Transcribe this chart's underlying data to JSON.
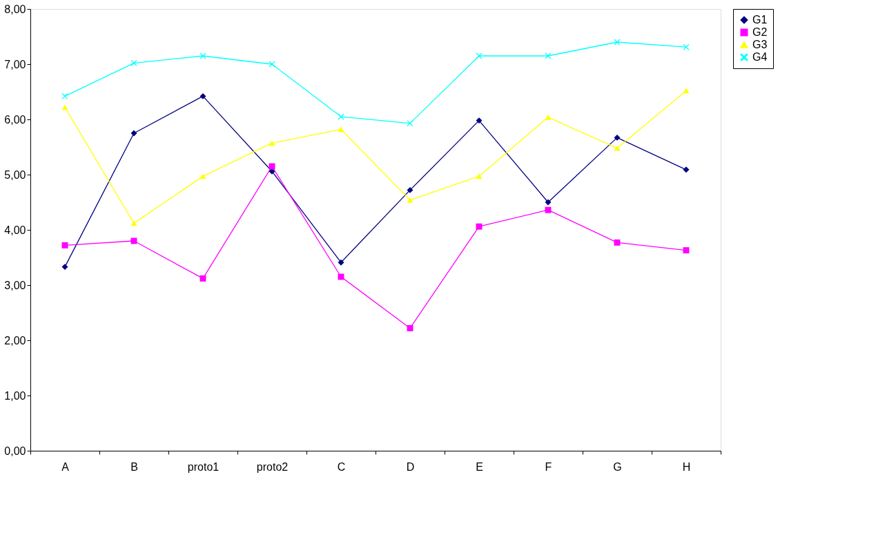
{
  "chart_data": {
    "type": "line",
    "categories": [
      "A",
      "B",
      "proto1",
      "proto2",
      "C",
      "D",
      "E",
      "F",
      "G",
      "H"
    ],
    "series": [
      {
        "name": "G1",
        "color": "#000080",
        "marker": "diamond",
        "values": [
          3.33,
          5.75,
          6.42,
          5.06,
          3.41,
          4.72,
          5.98,
          4.5,
          5.67,
          5.09
        ]
      },
      {
        "name": "G2",
        "color": "#ff00ff",
        "marker": "square",
        "values": [
          3.72,
          3.8,
          3.12,
          5.15,
          3.15,
          2.22,
          4.06,
          4.36,
          3.77,
          3.63
        ]
      },
      {
        "name": "G3",
        "color": "#ffff00",
        "marker": "triangle",
        "values": [
          6.22,
          4.12,
          4.97,
          5.57,
          5.82,
          4.54,
          4.97,
          6.04,
          5.48,
          6.52
        ]
      },
      {
        "name": "G4",
        "color": "#00ffff",
        "marker": "cross",
        "values": [
          6.42,
          7.02,
          7.15,
          7.0,
          6.05,
          5.93,
          7.15,
          7.15,
          7.4,
          7.31
        ]
      }
    ],
    "ylim": [
      0,
      8
    ],
    "yticks": [
      {
        "value": 0,
        "label": "0,00"
      },
      {
        "value": 1,
        "label": "1,00"
      },
      {
        "value": 2,
        "label": "2,00"
      },
      {
        "value": 3,
        "label": "3,00"
      },
      {
        "value": 4,
        "label": "4,00"
      },
      {
        "value": 5,
        "label": "5,00"
      },
      {
        "value": 6,
        "label": "6,00"
      },
      {
        "value": 7,
        "label": "7,00"
      },
      {
        "value": 8,
        "label": "8,00"
      }
    ],
    "grid": false,
    "legend": "right",
    "line_style": "solid"
  }
}
